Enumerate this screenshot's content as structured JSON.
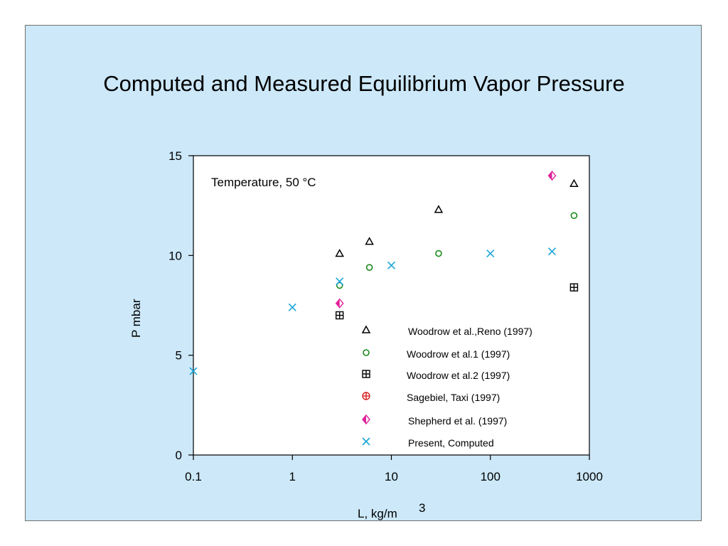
{
  "title": "Computed and Measured Equilibrium Vapor Pressure",
  "chart_data": {
    "type": "scatter",
    "title": "Computed and Measured Equilibrium Vapor Pressure",
    "annotation": "Temperature, 50 °C",
    "xlabel": "L, kg/m",
    "xlabel_sup": "3",
    "ylabel": "P mbar",
    "xscale": "log",
    "xlim": [
      0.1,
      1000
    ],
    "ylim": [
      0,
      15
    ],
    "x_ticks": [
      "0.1",
      "1",
      "10",
      "100",
      "1000"
    ],
    "y_ticks": [
      "0",
      "5",
      "10",
      "15"
    ],
    "grid": false,
    "legend_position": "bottom-right",
    "series": [
      {
        "name": "Woodrow et al.,Reno (1997)",
        "marker": "triangle",
        "color": "#000000",
        "points": [
          [
            3,
            10.1
          ],
          [
            6,
            10.7
          ],
          [
            30,
            12.3
          ],
          [
            700,
            13.6
          ]
        ]
      },
      {
        "name": "Woodrow et al.1 (1997)",
        "marker": "circle",
        "color": "#1a8a1a",
        "points": [
          [
            3,
            8.5
          ],
          [
            6,
            9.4
          ],
          [
            30,
            10.1
          ],
          [
            700,
            12.0
          ]
        ]
      },
      {
        "name": "Woodrow et al.2 (1997)",
        "marker": "boxplus",
        "color": "#000000",
        "points": [
          [
            3,
            7.0
          ],
          [
            700,
            8.4
          ]
        ]
      },
      {
        "name": "Sagebiel, Taxi  (1997)",
        "marker": "circleplus",
        "color": "#d42020",
        "points": []
      },
      {
        "name": "Shepherd et al. (1997)",
        "marker": "diamond",
        "color": "#e0209a",
        "points": [
          [
            3,
            7.6
          ],
          [
            420,
            14.0
          ]
        ]
      },
      {
        "name": "Present,  Computed",
        "marker": "x",
        "color": "#1aa6d8",
        "points": [
          [
            0.1,
            4.2
          ],
          [
            1,
            7.4
          ],
          [
            3,
            8.7
          ],
          [
            10,
            9.5
          ],
          [
            100,
            10.1
          ],
          [
            420,
            10.2
          ]
        ]
      }
    ]
  }
}
